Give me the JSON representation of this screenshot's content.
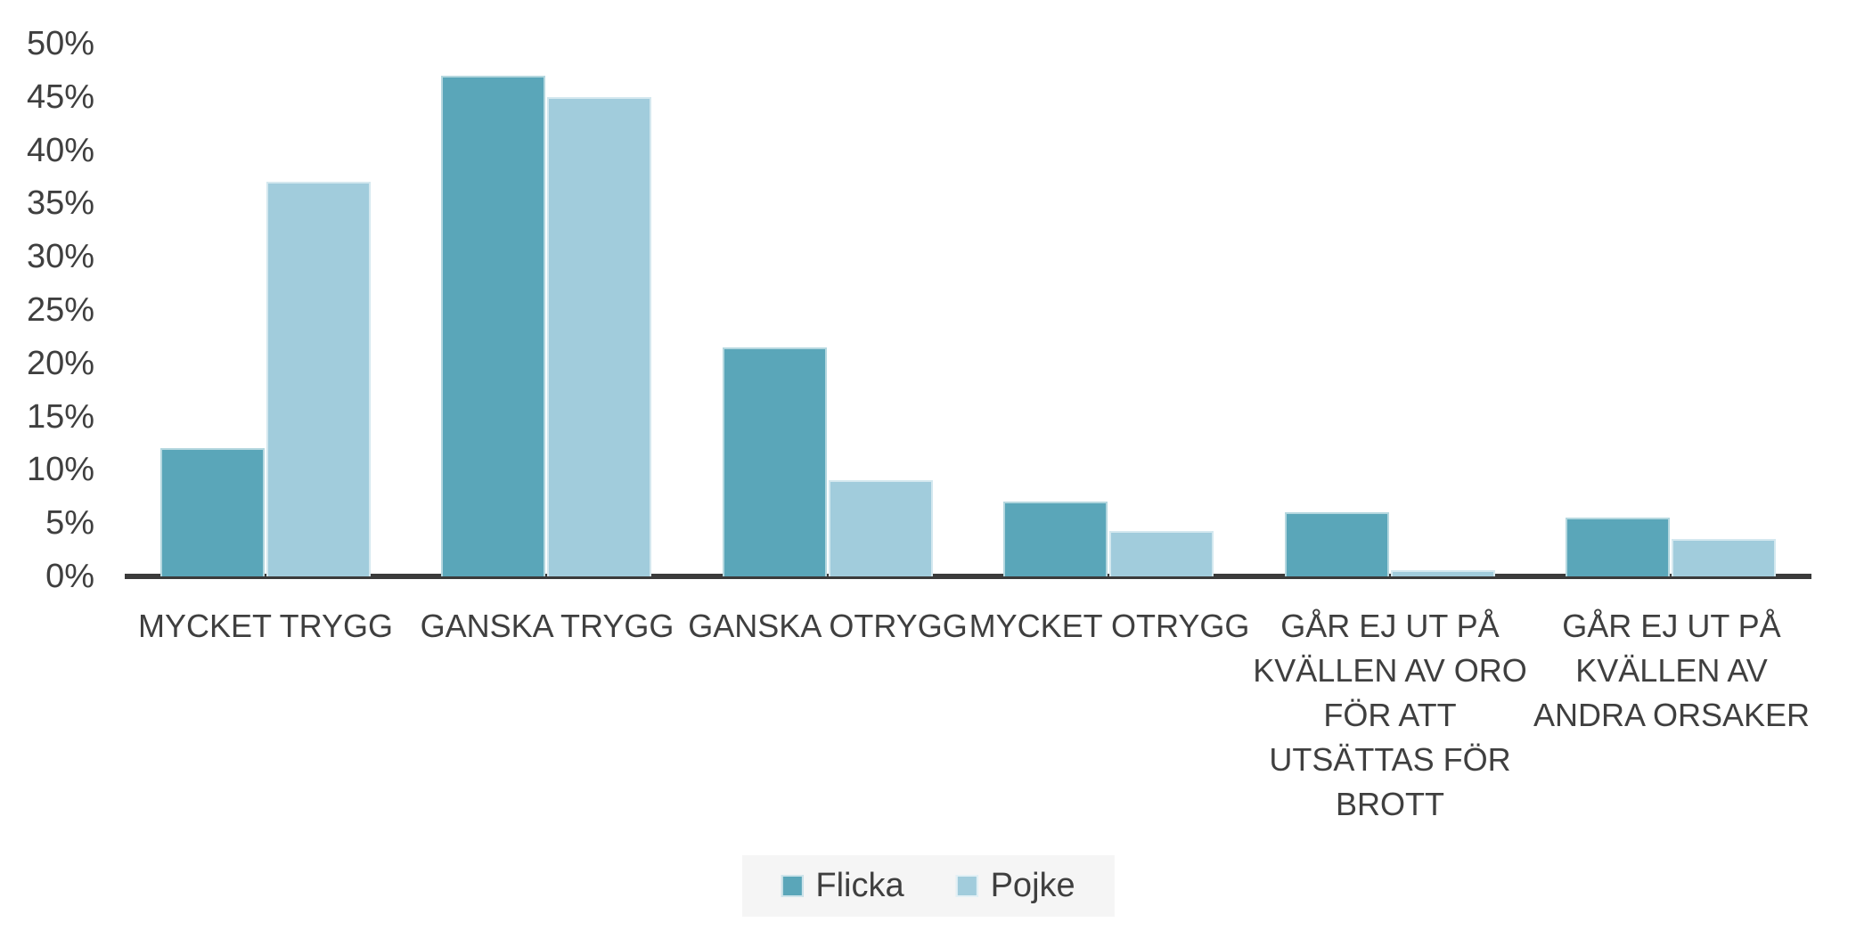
{
  "chart_data": {
    "type": "bar",
    "title": "",
    "xlabel": "",
    "ylabel": "",
    "ylim": [
      0,
      50
    ],
    "ytick_step": 5,
    "ytick_labels": [
      "0%",
      "5%",
      "10%",
      "15%",
      "20%",
      "25%",
      "30%",
      "35%",
      "40%",
      "45%",
      "50%"
    ],
    "grid": false,
    "legend_position": "bottom-center",
    "categories": [
      "MYCKET TRYGG",
      "GANSKA TRYGG",
      "GANSKA OTRYGG",
      "MYCKET OTRYGG",
      "GÅR EJ UT PÅ KVÄLLEN AV ORO FÖR ATT UTSÄTTAS FÖR BROTT",
      "GÅR EJ UT PÅ KVÄLLEN AV ANDRA ORSAKER"
    ],
    "category_lines": [
      [
        "MYCKET TRYGG"
      ],
      [
        "GANSKA TRYGG"
      ],
      [
        "GANSKA OTRYGG"
      ],
      [
        "MYCKET OTRYGG"
      ],
      [
        "GÅR EJ UT PÅ",
        "KVÄLLEN AV ORO",
        "FÖR ATT",
        "UTSÄTTAS FÖR",
        "BROTT"
      ],
      [
        "GÅR EJ UT PÅ",
        "KVÄLLEN AV",
        "ANDRA ORSAKER"
      ]
    ],
    "series": [
      {
        "name": "Flicka",
        "color": "#5aa6b9",
        "values": [
          12,
          47,
          21.5,
          7,
          6,
          5.5
        ]
      },
      {
        "name": "Pojke",
        "color": "#a1ccdc",
        "values": [
          37,
          45,
          9,
          4.3,
          0.6,
          3.5
        ]
      }
    ],
    "colors": {
      "axis_line": "#3b3b3b",
      "text": "#3f3f3f",
      "legend_background": "#f5f5f5",
      "background": "#ffffff"
    }
  }
}
